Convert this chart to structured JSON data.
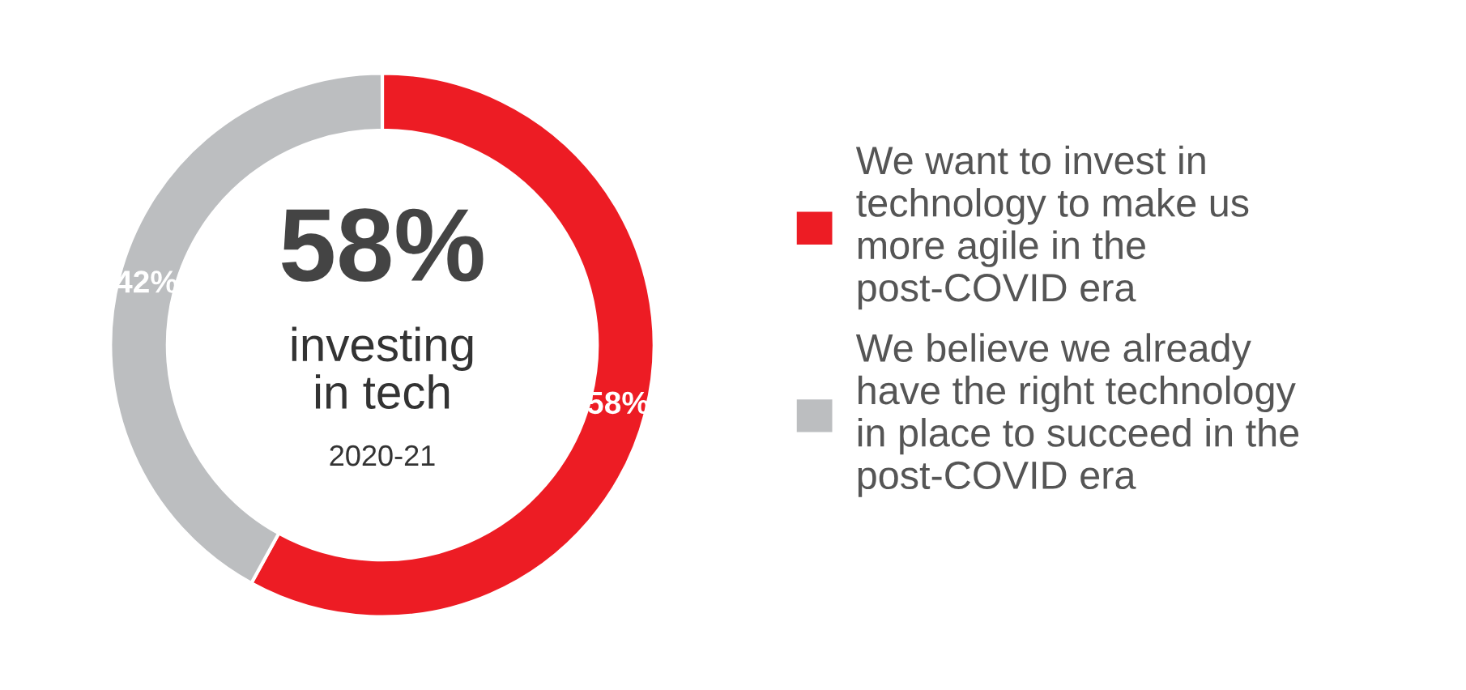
{
  "chart_data": {
    "type": "donut",
    "categories": [
      "We want to invest in\ntechnology to make us\nmore agile in the\npost-COVID era",
      "We believe we already\nhave the right technology\nin place to succeed in the\npost-COVID era"
    ],
    "values": [
      58,
      42
    ],
    "colors": [
      "#ed1c24",
      "#bcbec0"
    ],
    "value_labels": [
      "58%",
      "42%"
    ],
    "annotations": [
      "58%",
      "investing\nin tech",
      "2020-21"
    ],
    "legend": "right"
  }
}
